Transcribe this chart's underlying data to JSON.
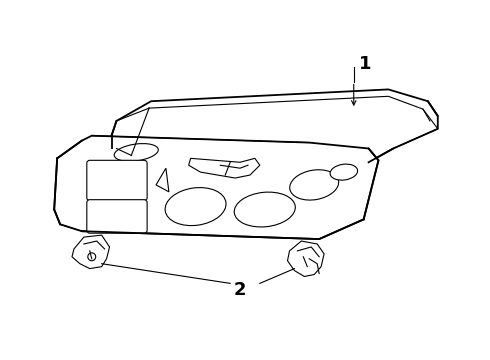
{
  "background_color": "#ffffff",
  "line_color": "#000000",
  "thin_lw": 0.8,
  "main_lw": 1.3,
  "figsize": [
    4.9,
    3.6
  ],
  "dpi": 100,
  "label_1": "1",
  "label_2": "2",
  "label_fontsize": 13,
  "label_fontweight": "bold"
}
